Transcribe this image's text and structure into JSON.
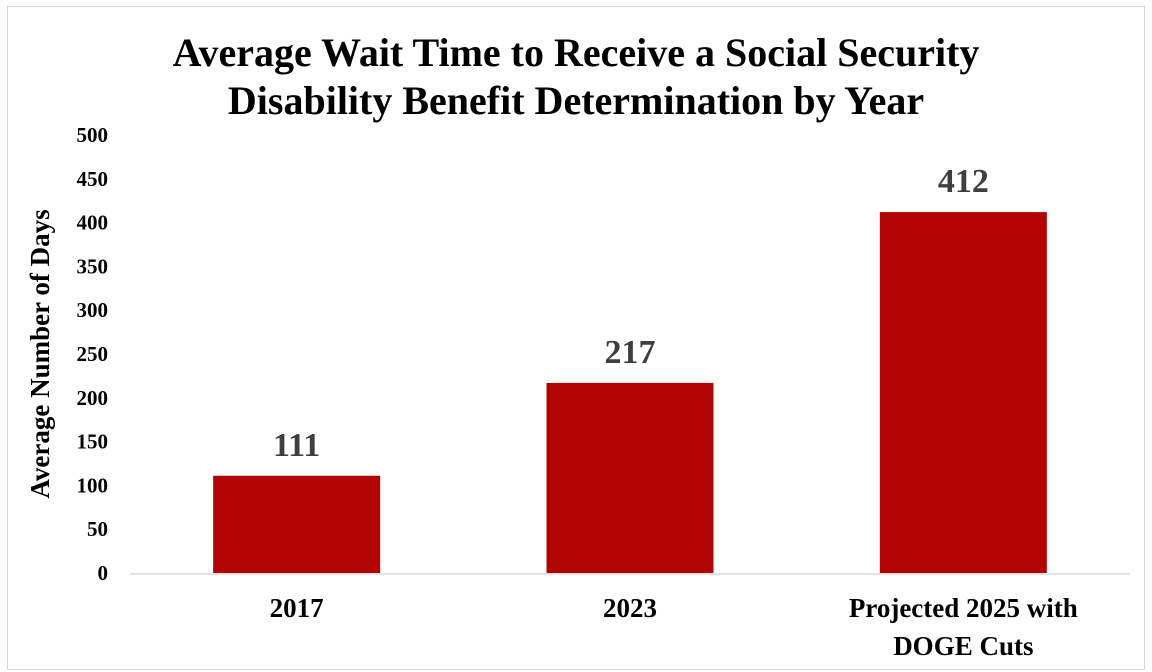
{
  "chart_data": {
    "type": "bar",
    "title_lines": [
      "Average Wait Time to Receive a Social Security",
      "Disability Benefit Determination by Year"
    ],
    "categories": [
      [
        "2017"
      ],
      [
        "2023"
      ],
      [
        "Projected 2025 with",
        "DOGE Cuts"
      ]
    ],
    "values": [
      111,
      217,
      412
    ],
    "data_labels": [
      "111",
      "217",
      "412"
    ],
    "ylabel": "Average Number of Days",
    "xlabel": "",
    "ylim": [
      0,
      500
    ],
    "yticks": [
      0,
      50,
      100,
      150,
      200,
      250,
      300,
      350,
      400,
      450,
      500
    ],
    "bar_color": "#b20404",
    "grid": false,
    "legend": "none"
  }
}
